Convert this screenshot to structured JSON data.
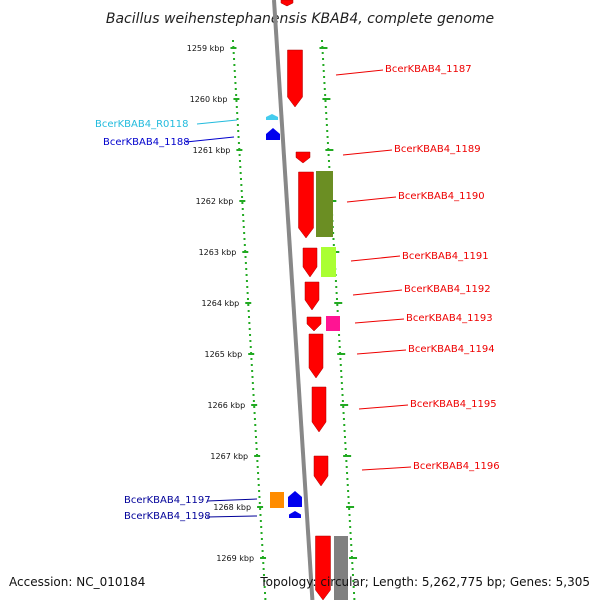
{
  "title": "Bacillus weihenstephanensis KBAB4, complete genome",
  "footer": {
    "accession": "Accession: NC_010184",
    "topology": "Topology: circular; Length: 5,262,775 bp; Genes: 5,305"
  },
  "scale_ticks": [
    {
      "label": "1259 kbp",
      "kbp": 1259
    },
    {
      "label": "1260 kbp",
      "kbp": 1260
    },
    {
      "label": "1261 kbp",
      "kbp": 1261
    },
    {
      "label": "1262 kbp",
      "kbp": 1262
    },
    {
      "label": "1263 kbp",
      "kbp": 1263
    },
    {
      "label": "1264 kbp",
      "kbp": 1264
    },
    {
      "label": "1265 kbp",
      "kbp": 1265
    },
    {
      "label": "1266 kbp",
      "kbp": 1266
    },
    {
      "label": "1267 kbp",
      "kbp": 1267
    },
    {
      "label": "1268 kbp",
      "kbp": 1268
    },
    {
      "label": "1269 kbp",
      "kbp": 1269
    }
  ],
  "genes": [
    {
      "label": "BcerKBAB4_1187",
      "color": "#ee0000",
      "track": "right"
    },
    {
      "label": "BcerKBAB4_R0118",
      "color": "#22bbdd",
      "track": "left"
    },
    {
      "label": "BcerKBAB4_1188",
      "color": "#0000cc",
      "track": "left"
    },
    {
      "label": "BcerKBAB4_1189",
      "color": "#ee0000",
      "track": "right"
    },
    {
      "label": "BcerKBAB4_1190",
      "color": "#ee0000",
      "track": "right"
    },
    {
      "label": "BcerKBAB4_1191",
      "color": "#ee0000",
      "track": "right"
    },
    {
      "label": "BcerKBAB4_1192",
      "color": "#ee0000",
      "track": "right"
    },
    {
      "label": "BcerKBAB4_1193",
      "color": "#ee0000",
      "track": "right"
    },
    {
      "label": "BcerKBAB4_1194",
      "color": "#ee0000",
      "track": "right"
    },
    {
      "label": "BcerKBAB4_1195",
      "color": "#ee0000",
      "track": "right"
    },
    {
      "label": "BcerKBAB4_1196",
      "color": "#ee0000",
      "track": "right"
    },
    {
      "label": "BcerKBAB4_1197",
      "color": "#000099",
      "track": "left"
    },
    {
      "label": "BcerKBAB4_1198",
      "color": "#000099",
      "track": "left"
    }
  ],
  "colors": {
    "forward_gene": "#ff0000",
    "reverse_gene": "#0000ee",
    "backbone": "#888888",
    "scale_dots": "#22aa22",
    "annotation_olive": "#6b8e23",
    "annotation_lime": "#aaff33",
    "annotation_magenta": "#ff1493",
    "annotation_orange": "#ff8c00",
    "annotation_gray": "#808080"
  }
}
